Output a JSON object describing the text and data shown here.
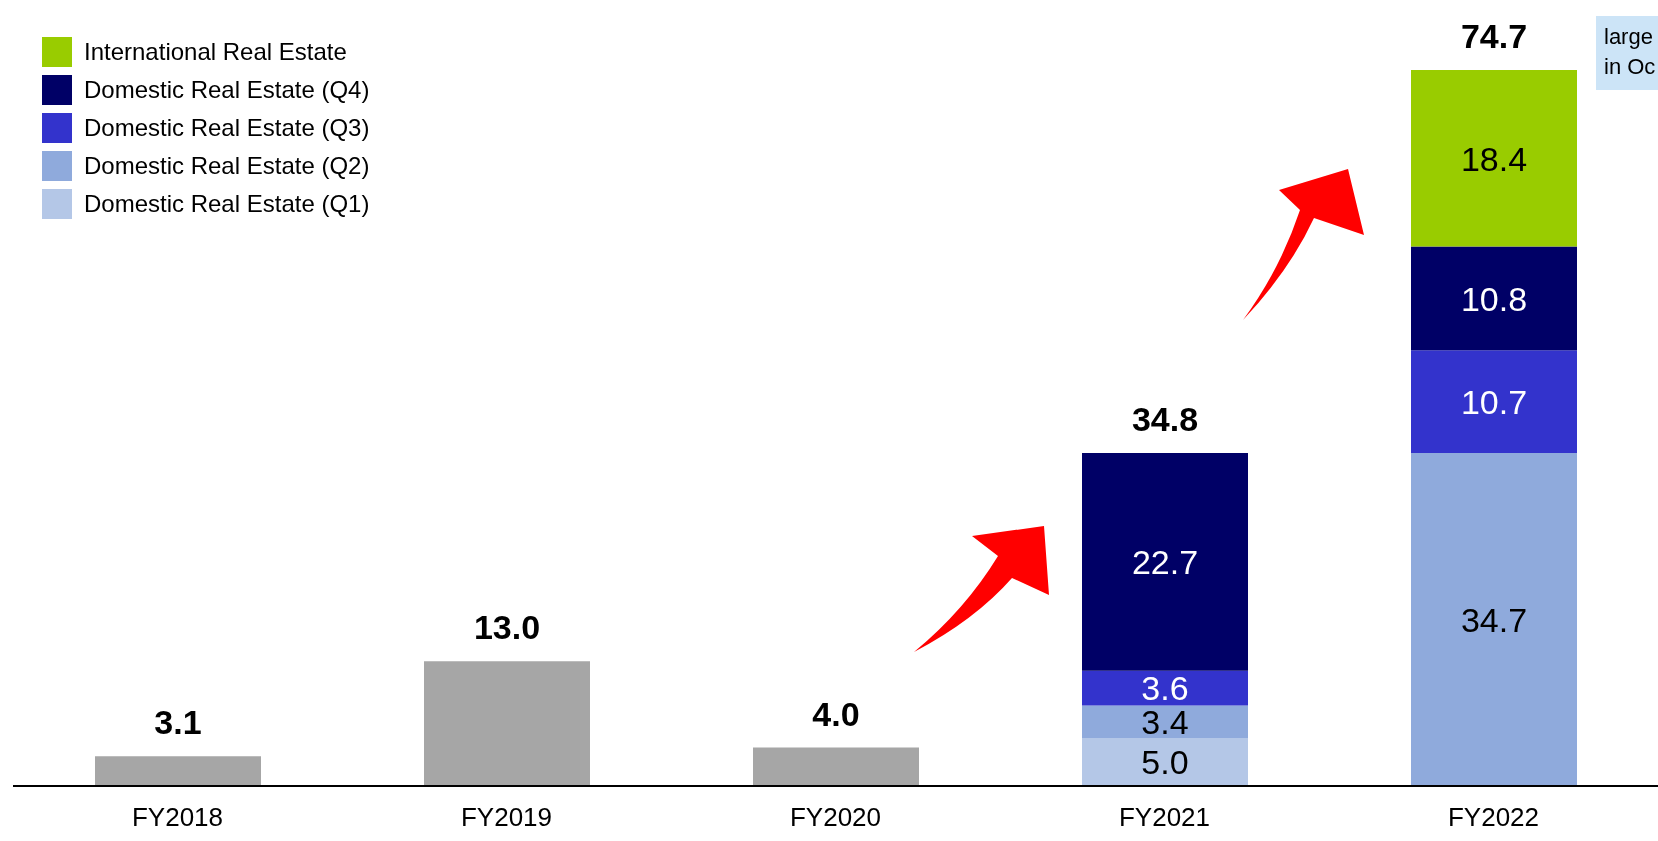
{
  "chart_data": {
    "type": "bar",
    "stacked": true,
    "categories": [
      "FY2018",
      "FY2019",
      "FY2020",
      "FY2021",
      "FY2022"
    ],
    "series": [
      {
        "color": "#a6a6a6",
        "values": [
          3.1,
          13.0,
          4.0,
          null,
          null
        ],
        "value_labels": [
          "3.1",
          "13.0",
          "4.0",
          null,
          null
        ]
      },
      {
        "name": "Domestic Real Estate (Q1)",
        "color": "#b4c7e7",
        "values": [
          null,
          null,
          null,
          5.0,
          null
        ],
        "value_labels": [
          null,
          null,
          null,
          "5.0",
          null
        ]
      },
      {
        "name": "Domestic Real Estate (Q2)",
        "color": "#8faadc",
        "values": [
          null,
          null,
          null,
          3.4,
          34.7
        ],
        "value_labels": [
          null,
          null,
          null,
          "3.4",
          "34.7"
        ]
      },
      {
        "name": "Domestic Real Estate (Q3)",
        "color": "#3333cc",
        "values": [
          null,
          null,
          null,
          3.6,
          10.7
        ],
        "value_labels": [
          null,
          null,
          null,
          "3.6",
          "10.7"
        ]
      },
      {
        "name": "Domestic Real Estate (Q4)",
        "color": "#000066",
        "values": [
          null,
          null,
          null,
          22.7,
          10.8
        ],
        "value_labels": [
          null,
          null,
          null,
          "22.7",
          "10.8"
        ]
      },
      {
        "name": "International Real Estate",
        "color": "#99cc00",
        "values": [
          null,
          null,
          null,
          null,
          18.4
        ],
        "value_labels": [
          null,
          null,
          null,
          null,
          "18.4"
        ]
      }
    ],
    "totals": [
      null,
      null,
      null,
      "34.8",
      "74.7"
    ],
    "legend": "top left",
    "annotations": [
      "large\nin Oc"
    ]
  }
}
